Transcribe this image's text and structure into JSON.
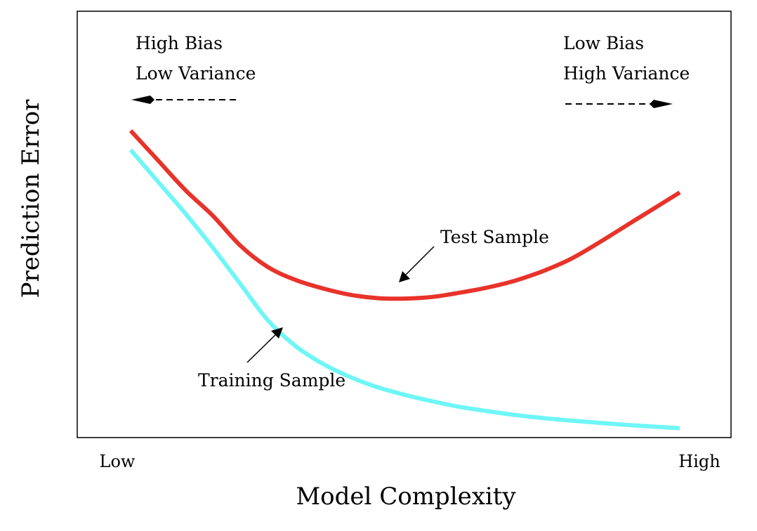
{
  "chart_data": {
    "type": "line",
    "title": "",
    "xlabel": "Model Complexity",
    "ylabel": "Prediction Error",
    "xticks": [
      "Low",
      "High"
    ],
    "xlim": [
      0,
      1
    ],
    "ylim": [
      0,
      1
    ],
    "grid": false,
    "series": [
      {
        "name": "Test Sample",
        "color": "#e8332a",
        "x": [
          0.0,
          0.05,
          0.1,
          0.15,
          0.2,
          0.25,
          0.3,
          0.35,
          0.4,
          0.45,
          0.5,
          0.55,
          0.6,
          0.65,
          0.7,
          0.75,
          0.8,
          0.85,
          0.9,
          0.95,
          1.0
        ],
        "y": [
          0.72,
          0.65,
          0.58,
          0.52,
          0.45,
          0.4,
          0.37,
          0.35,
          0.335,
          0.327,
          0.326,
          0.33,
          0.34,
          0.352,
          0.368,
          0.39,
          0.418,
          0.455,
          0.495,
          0.535,
          0.575
        ]
      },
      {
        "name": "Training Sample",
        "color": "#6ff6f6",
        "x": [
          0.0,
          0.05,
          0.1,
          0.15,
          0.2,
          0.25,
          0.3,
          0.35,
          0.4,
          0.45,
          0.5,
          0.55,
          0.6,
          0.65,
          0.7,
          0.75,
          0.8,
          0.85,
          0.9,
          0.95,
          1.0
        ],
        "y": [
          0.675,
          0.6,
          0.525,
          0.445,
          0.36,
          0.275,
          0.215,
          0.173,
          0.142,
          0.118,
          0.1,
          0.085,
          0.072,
          0.062,
          0.053,
          0.046,
          0.04,
          0.035,
          0.03,
          0.026,
          0.022
        ]
      }
    ],
    "annotations": {
      "test_label": "Test Sample",
      "train_label": "Training Sample",
      "left_line1": "High Bias",
      "left_line2": "Low Variance",
      "right_line1": "Low Bias",
      "right_line2": "High Variance"
    }
  }
}
